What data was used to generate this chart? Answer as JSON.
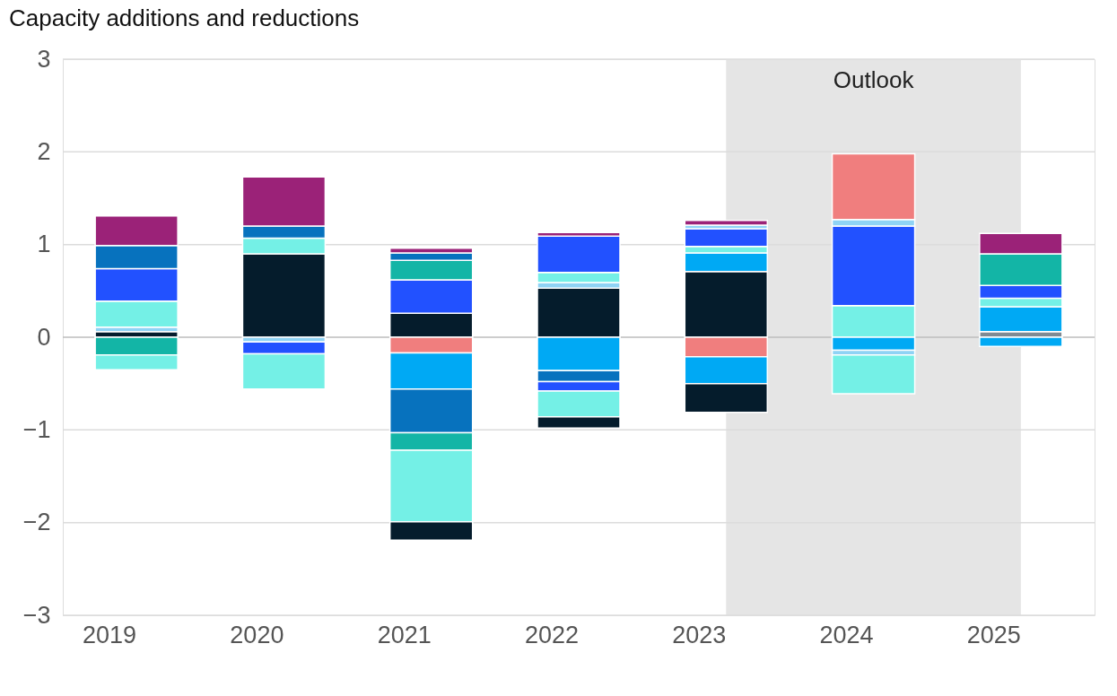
{
  "chart_data": {
    "type": "bar",
    "title": "Capacity additions and reductions",
    "stacked": true,
    "categories": [
      "2019",
      "2020",
      "2021",
      "2022",
      "2023",
      "2024",
      "2025"
    ],
    "series": [
      {
        "colors": [
          "#051c2c",
          "#051c2c",
          "#051c2c",
          "#051c2c",
          "#051c2c",
          "#74f0e6",
          "#7f8a93"
        ],
        "values": [
          0.06,
          0.9,
          0.26,
          0.53,
          0.71,
          0.34,
          0.06
        ]
      },
      {
        "colors": [
          "#8fd3f5",
          "#74f0e6",
          "#2251ff",
          "#8fd3f5",
          "#00a9f4",
          "#2251ff",
          "#00a9f4"
        ],
        "values": [
          0.05,
          0.17,
          0.36,
          0.06,
          0.2,
          0.86,
          0.27
        ]
      },
      {
        "colors": [
          "#74f0e6",
          "#0772be",
          "#13b5a6",
          "#74f0e6",
          "#74f0e6",
          "#8fd3f5",
          "#74f0e6"
        ],
        "values": [
          0.28,
          0.13,
          0.21,
          0.11,
          0.07,
          0.07,
          0.09
        ]
      },
      {
        "colors": [
          "#2251ff",
          "#9b2278",
          "#0772be",
          "#2251ff",
          "#2251ff",
          "#f07e7e",
          "#2251ff"
        ],
        "values": [
          0.35,
          0.53,
          0.08,
          0.39,
          0.19,
          0.71,
          0.14
        ]
      },
      {
        "colors": [
          "#0772be",
          null,
          "#9b2278",
          "#9b2278",
          "#8fd3f5",
          null,
          "#13b5a6"
        ],
        "values": [
          0.25,
          null,
          0.05,
          0.04,
          0.04,
          null,
          0.34
        ]
      },
      {
        "colors": [
          "#9b2278",
          null,
          null,
          null,
          "#9b2278",
          null,
          "#9b2278"
        ],
        "values": [
          0.32,
          null,
          null,
          null,
          0.05,
          null,
          0.22
        ]
      },
      {
        "colors": [
          "#13b5a6",
          "#8fd3f5",
          "#f07e7e",
          "#00a9f4",
          "#f07e7e",
          "#00a9f4",
          "#00a9f4"
        ],
        "values": [
          -0.19,
          -0.05,
          -0.17,
          -0.36,
          -0.21,
          -0.14,
          -0.1
        ]
      },
      {
        "colors": [
          "#74f0e6",
          "#2251ff",
          "#00a9f4",
          "#0772be",
          "#00a9f4",
          "#8fd3f5",
          null
        ],
        "values": [
          -0.16,
          -0.13,
          -0.39,
          -0.12,
          -0.29,
          -0.05,
          null
        ]
      },
      {
        "colors": [
          null,
          "#74f0e6",
          "#0772be",
          "#2251ff",
          "#051c2c",
          "#74f0e6",
          null
        ],
        "values": [
          null,
          -0.38,
          -0.47,
          -0.1,
          -0.31,
          -0.42,
          null
        ]
      },
      {
        "colors": [
          null,
          null,
          "#13b5a6",
          "#74f0e6",
          null,
          null,
          null
        ],
        "values": [
          null,
          null,
          -0.19,
          -0.28,
          null,
          null,
          null
        ]
      },
      {
        "colors": [
          null,
          null,
          "#74f0e6",
          "#051c2c",
          null,
          null,
          null
        ],
        "values": [
          null,
          null,
          -0.77,
          -0.12,
          null,
          null,
          null
        ]
      },
      {
        "colors": [
          null,
          null,
          "#051c2c",
          null,
          null,
          null,
          null
        ],
        "values": [
          null,
          null,
          -0.2,
          null,
          null,
          null,
          null
        ]
      }
    ],
    "ylim": [
      -3,
      3
    ],
    "yticks": [
      {
        "value": -3,
        "label": "−3"
      },
      {
        "value": -2,
        "label": "−2"
      },
      {
        "value": -1,
        "label": "−1"
      },
      0,
      1,
      2,
      3
    ],
    "grid": "y",
    "bands": [
      {
        "axis": "x",
        "from": "2023",
        "to": "2025",
        "label": "Outlook",
        "color": "#e5e5e5"
      }
    ]
  }
}
